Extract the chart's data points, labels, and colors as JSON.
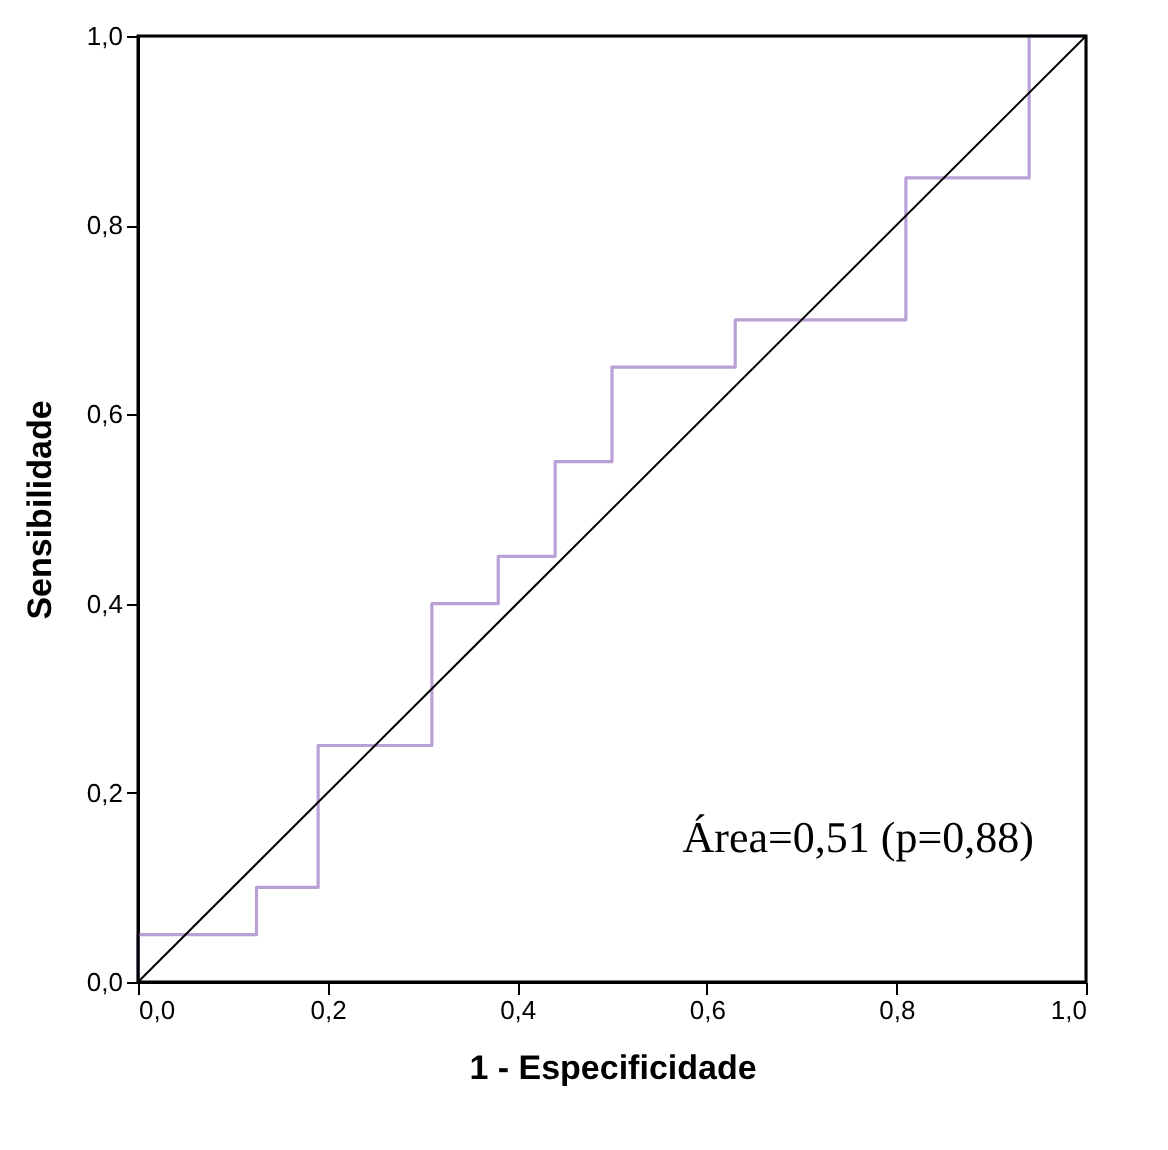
{
  "chart_data": {
    "type": "line",
    "xlabel": "1 - Especificidade",
    "ylabel": "Sensibilidade",
    "series": [
      {
        "type": "step",
        "color": "#b9a0d6",
        "x": [
          0,
          0,
          0.125,
          0.19,
          0.31,
          0.38,
          0.44,
          0.5,
          0.63,
          0.81,
          0.94,
          1
        ],
        "values": [
          0,
          0.05,
          0.1,
          0.25,
          0.4,
          0.45,
          0.55,
          0.65,
          0.7,
          0.85,
          1,
          1
        ]
      },
      {
        "type": "line",
        "color": "#000000",
        "x": [
          0,
          1
        ],
        "values": [
          0,
          1
        ]
      }
    ],
    "xlim": [
      0,
      1
    ],
    "ylim": [
      0,
      1
    ],
    "xticks": [
      {
        "value": 0,
        "label": "0,0"
      },
      {
        "value": 0.2,
        "label": "0,2"
      },
      {
        "value": 0.4,
        "label": "0,4"
      },
      {
        "value": 0.6,
        "label": "0,6"
      },
      {
        "value": 0.8,
        "label": "0,8"
      },
      {
        "value": 1,
        "label": "1,0"
      }
    ],
    "yticks": [
      {
        "value": 0,
        "label": "0,0"
      },
      {
        "value": 0.2,
        "label": "0,2"
      },
      {
        "value": 0.4,
        "label": "0,4"
      },
      {
        "value": 0.6,
        "label": "0,6"
      },
      {
        "value": 0.8,
        "label": "0,8"
      },
      {
        "value": 1,
        "label": "1,0"
      }
    ],
    "annotations": [
      "Área=0,51 (p=0,88)"
    ],
    "grid": false,
    "legend": false,
    "marker": "none"
  }
}
